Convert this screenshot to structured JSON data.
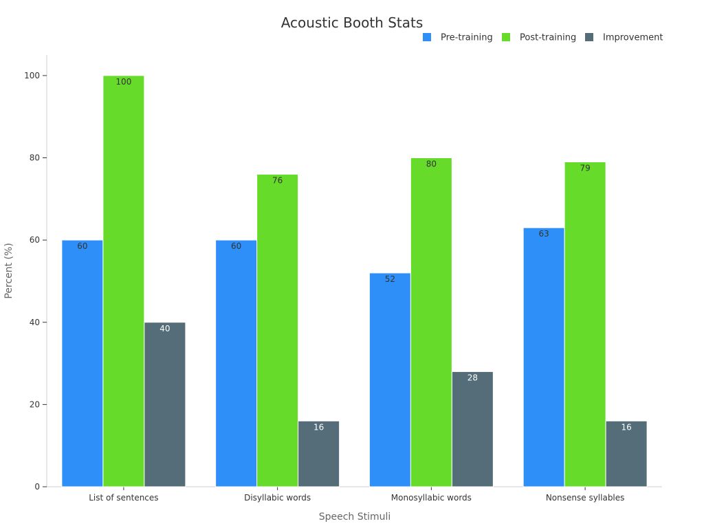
{
  "chart_data": {
    "type": "bar",
    "title": "Acoustic Booth Stats",
    "xlabel": "Speech Stimuli",
    "ylabel": "Percent (%)",
    "categories": [
      "List of sentences",
      "Disyllabic words",
      "Monosyllabic words",
      "Nonsense syllables"
    ],
    "series": [
      {
        "name": "Pre-training",
        "color": "#2d8ff7",
        "label_color": "#333333",
        "values": [
          60,
          60,
          52,
          63
        ]
      },
      {
        "name": "Post-training",
        "color": "#66db2a",
        "label_color": "#333333",
        "values": [
          100,
          76,
          80,
          79
        ]
      },
      {
        "name": "Improvement",
        "color": "#546d78",
        "label_color": "#ffffff",
        "values": [
          40,
          16,
          28,
          16
        ]
      }
    ],
    "ylim": [
      0,
      105
    ],
    "yticks": [
      0,
      20,
      40,
      60,
      80,
      100
    ],
    "grid": false,
    "legend_position": "top-right"
  }
}
